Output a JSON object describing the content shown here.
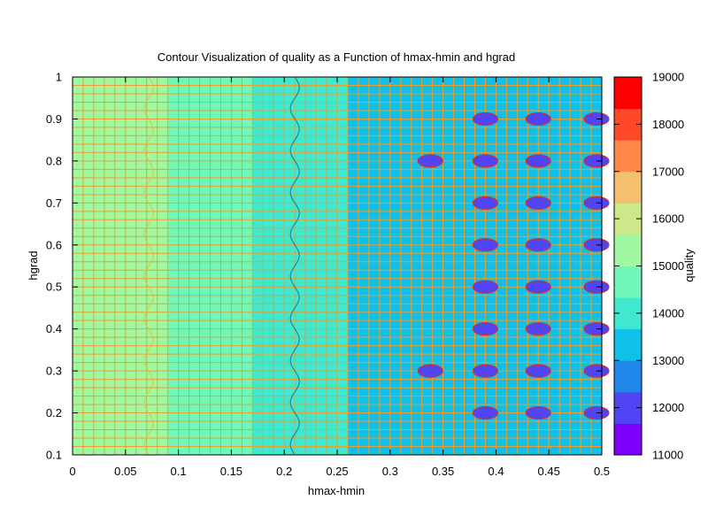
{
  "chart_data": {
    "type": "heatmap",
    "title": "Contour Visualization of quality as a Function of hmax-hmin and hgrad",
    "xlabel": "hmax-hmin",
    "ylabel": "hgrad",
    "colorbar_label": "quality",
    "xlim": [
      0,
      0.5
    ],
    "ylim": [
      0.1,
      1
    ],
    "x_ticks": [
      "0",
      "0.05",
      "0.1",
      "0.15",
      "0.2",
      "0.25",
      "0.3",
      "0.35",
      "0.4",
      "0.45",
      "0.5"
    ],
    "y_ticks": [
      "0.1",
      "0.2",
      "0.3",
      "0.4",
      "0.5",
      "0.6",
      "0.7",
      "0.8",
      "0.9",
      "1"
    ],
    "colorbar_range": [
      11000,
      19000
    ],
    "colorbar_ticks": [
      "11000",
      "12000",
      "13000",
      "14000",
      "15000",
      "16000",
      "17000",
      "18000",
      "19000"
    ],
    "colorbar_colors": [
      "#8000ff",
      "#5044f4",
      "#2088eb",
      "#10c0e8",
      "#40e8d0",
      "#70f8b8",
      "#a0f8a0",
      "#cce888",
      "#f4c070",
      "#ff8848",
      "#ff4828",
      "#ff0000"
    ],
    "grid": true,
    "columns": [
      {
        "x": [
          0.0,
          0.01
        ],
        "quality": 15500
      },
      {
        "x": [
          0.01,
          0.09
        ],
        "quality": 15500
      },
      {
        "x": [
          0.09,
          0.17
        ],
        "quality": 14600
      },
      {
        "x": [
          0.17,
          0.26
        ],
        "quality": 14200
      },
      {
        "x": [
          0.26,
          0.5
        ],
        "quality": 13200
      }
    ],
    "contour_lines": [
      {
        "x_center": 0.21,
        "color": "#2a6f8f"
      },
      {
        "x_center": 0.072,
        "color": "#e0c040"
      }
    ],
    "low_spots": [
      {
        "x": 0.39,
        "ys": [
          0.2,
          0.3,
          0.4,
          0.5,
          0.6,
          0.7,
          0.8,
          0.9
        ]
      },
      {
        "x": 0.44,
        "ys": [
          0.2,
          0.3,
          0.4,
          0.5,
          0.6,
          0.7,
          0.8,
          0.9
        ]
      },
      {
        "x": 0.495,
        "ys": [
          0.2,
          0.3,
          0.4,
          0.5,
          0.6,
          0.7,
          0.8,
          0.9
        ]
      },
      {
        "x": 0.338,
        "ys": [
          0.3,
          0.8
        ]
      }
    ]
  }
}
